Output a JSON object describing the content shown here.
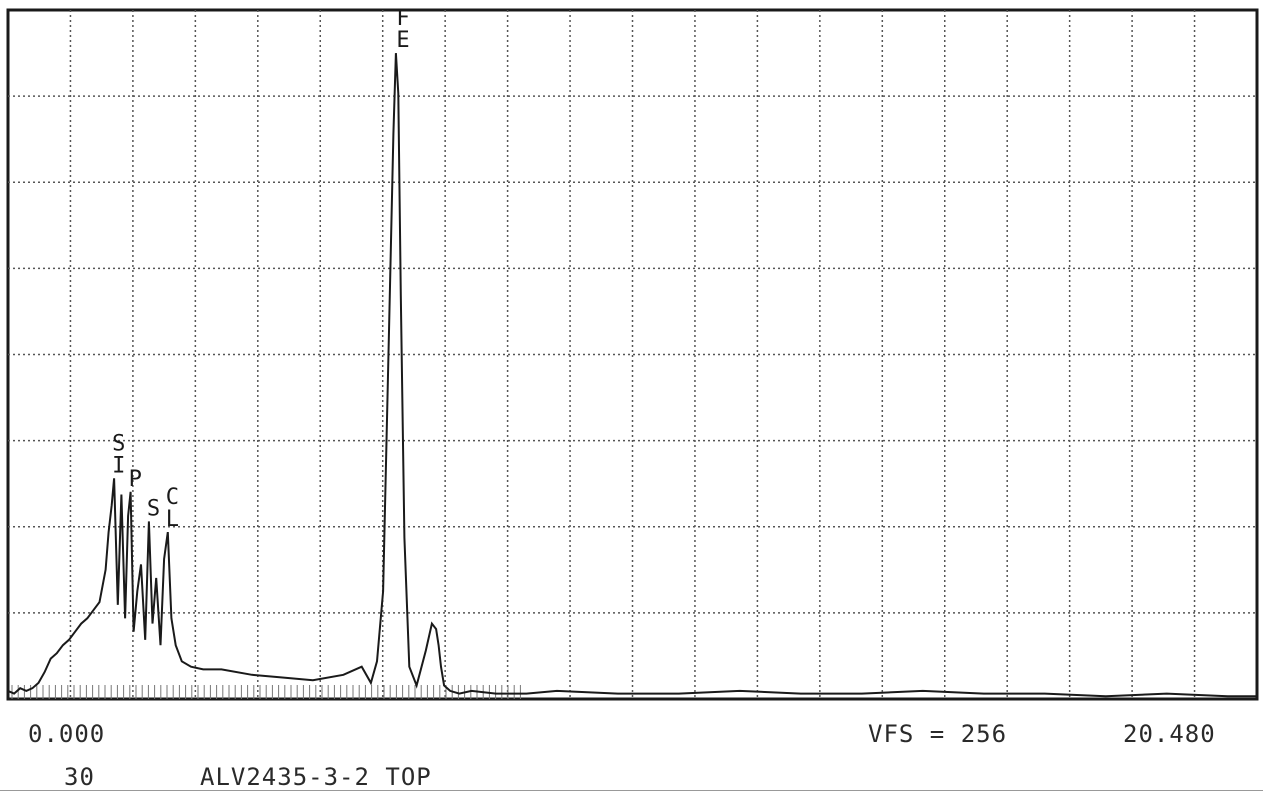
{
  "chart_data": {
    "type": "line",
    "title": "",
    "xlabel": "",
    "ylabel": "",
    "xlim": [
      0.0,
      20.48
    ],
    "ylim": [
      0,
      256
    ],
    "grid": true,
    "grid_divisions": {
      "x": 20,
      "y": 8
    },
    "colors": {
      "trace": "#1a1a1a",
      "grid": "#555555",
      "frame": "#1a1a1a"
    },
    "peak_labels": [
      {
        "element": "SI",
        "x": 1.74,
        "y": 82
      },
      {
        "element": "P",
        "x": 2.01,
        "y": 77
      },
      {
        "element": "S",
        "x": 2.31,
        "y": 66
      },
      {
        "element": "CL",
        "x": 2.62,
        "y": 62
      },
      {
        "element": "FE",
        "x": 6.4,
        "y": 240
      }
    ],
    "series": [
      {
        "x": [
          0.0,
          0.1,
          0.2,
          0.3,
          0.4,
          0.5,
          0.6,
          0.7,
          0.8,
          0.9,
          1.0,
          1.1,
          1.2,
          1.3,
          1.4,
          1.5,
          1.6,
          1.65,
          1.7,
          1.74,
          1.8,
          1.86,
          1.92,
          1.97,
          2.01,
          2.06,
          2.12,
          2.18,
          2.25,
          2.31,
          2.37,
          2.43,
          2.5,
          2.56,
          2.62,
          2.68,
          2.75,
          2.85,
          3.0,
          3.2,
          3.5,
          4.0,
          4.5,
          5.0,
          5.5,
          5.8,
          5.95,
          6.05,
          6.15,
          6.25,
          6.32,
          6.36,
          6.4,
          6.44,
          6.5,
          6.58,
          6.7,
          6.85,
          6.95,
          7.02,
          7.06,
          7.1,
          7.15,
          7.25,
          7.4,
          7.6,
          8.0,
          8.5,
          9.0,
          10.0,
          11.0,
          12.0,
          13.0,
          14.0,
          15.0,
          16.0,
          17.0,
          18.0,
          19.0,
          20.0,
          20.48
        ],
        "y": [
          3,
          2,
          4,
          3,
          4,
          6,
          10,
          15,
          17,
          20,
          22,
          25,
          28,
          30,
          33,
          36,
          48,
          62,
          72,
          82,
          35,
          76,
          30,
          68,
          77,
          25,
          40,
          50,
          22,
          66,
          28,
          45,
          20,
          52,
          62,
          30,
          20,
          14,
          12,
          11,
          11,
          9,
          8,
          7,
          9,
          12,
          6,
          14,
          40,
          140,
          210,
          240,
          225,
          150,
          60,
          12,
          5,
          18,
          28,
          26,
          20,
          12,
          5,
          3,
          2,
          3,
          2,
          2,
          3,
          2,
          2,
          3,
          2,
          2,
          3,
          2,
          2,
          1,
          2,
          1,
          1
        ]
      }
    ]
  },
  "readout": {
    "x_start": "0.000",
    "vfs": "VFS = 256",
    "x_end": "20.480",
    "run": "30",
    "sample": "ALV2435-3-2 TOP"
  }
}
